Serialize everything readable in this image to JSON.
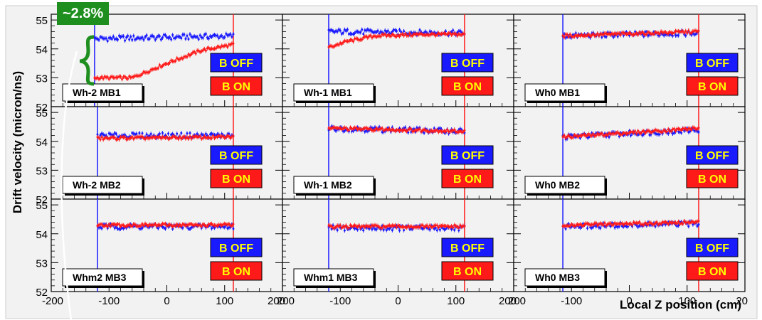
{
  "annotation": {
    "text": "~2.8%",
    "bg_color": "#1e8f1e"
  },
  "axes": {
    "ylabel": "Drift velocity  (micron/ns)",
    "xlabel": "Local Z position (cm)",
    "y_ticks": [
      "52",
      "53",
      "54",
      "55"
    ],
    "x_ticks_first": [
      "-200",
      "-100",
      "0",
      "100",
      "200"
    ],
    "x_ticks_mid": [
      "200",
      "-100",
      "0",
      "100",
      "200"
    ],
    "x_ticks_last": [
      "200",
      "-100",
      "0",
      "100",
      "20"
    ]
  },
  "legend": {
    "b_off": "B OFF",
    "b_on": "B ON",
    "b_off_color": "#1a1aff",
    "b_on_color": "#ff1a1a",
    "text_color": "#ffff00"
  },
  "colors": {
    "frame_bg": "#f2f2f2",
    "b_off_series": "#1a1aff",
    "b_on_series": "#ff1a1a"
  },
  "chart_data": [
    {
      "type": "line",
      "panel": "Wh-2 MB1",
      "xlim": [
        -200,
        200
      ],
      "ylim": [
        52,
        55.2
      ],
      "range": [
        -125,
        115
      ],
      "series": [
        {
          "name": "B OFF",
          "x": [
            -125,
            115
          ],
          "y": [
            54.35,
            54.45
          ]
        },
        {
          "name": "B ON",
          "x": [
            -125,
            -60,
            0,
            60,
            115
          ],
          "y": [
            53.0,
            53.0,
            53.5,
            53.95,
            54.15
          ]
        }
      ]
    },
    {
      "type": "line",
      "panel": "Wh-1 MB1",
      "xlim": [
        -200,
        200
      ],
      "ylim": [
        52,
        55.2
      ],
      "range": [
        -120,
        115
      ],
      "series": [
        {
          "name": "B OFF",
          "x": [
            -120,
            115
          ],
          "y": [
            54.6,
            54.55
          ]
        },
        {
          "name": "B ON",
          "x": [
            -120,
            -90,
            -40,
            40,
            115
          ],
          "y": [
            54.05,
            54.25,
            54.45,
            54.5,
            54.5
          ]
        }
      ]
    },
    {
      "type": "line",
      "panel": "Wh0 MB1",
      "xlim": [
        -200,
        200
      ],
      "ylim": [
        52,
        55.2
      ],
      "range": [
        -115,
        120
      ],
      "series": [
        {
          "name": "B OFF",
          "x": [
            -115,
            120
          ],
          "y": [
            54.45,
            54.55
          ]
        },
        {
          "name": "B ON",
          "x": [
            -115,
            120
          ],
          "y": [
            54.45,
            54.6
          ]
        }
      ]
    },
    {
      "type": "line",
      "panel": "Wh-2 MB2",
      "xlim": [
        -200,
        200
      ],
      "ylim": [
        52,
        55.2
      ],
      "range": [
        -120,
        115
      ],
      "series": [
        {
          "name": "B OFF",
          "x": [
            -120,
            115
          ],
          "y": [
            54.2,
            54.2
          ]
        },
        {
          "name": "B ON",
          "x": [
            -120,
            115
          ],
          "y": [
            54.1,
            54.15
          ]
        }
      ]
    },
    {
      "type": "line",
      "panel": "Wh-1 MB2",
      "xlim": [
        -200,
        200
      ],
      "ylim": [
        52,
        55.2
      ],
      "range": [
        -120,
        115
      ],
      "series": [
        {
          "name": "B OFF",
          "x": [
            -120,
            115
          ],
          "y": [
            54.45,
            54.35
          ]
        },
        {
          "name": "B ON",
          "x": [
            -120,
            115
          ],
          "y": [
            54.45,
            54.35
          ]
        }
      ]
    },
    {
      "type": "line",
      "panel": "Wh0 MB2",
      "xlim": [
        -200,
        200
      ],
      "ylim": [
        52,
        55.2
      ],
      "range": [
        -115,
        120
      ],
      "series": [
        {
          "name": "B OFF",
          "x": [
            -115,
            120
          ],
          "y": [
            54.15,
            54.4
          ]
        },
        {
          "name": "B ON",
          "x": [
            -115,
            120
          ],
          "y": [
            54.15,
            54.45
          ]
        }
      ]
    },
    {
      "type": "line",
      "panel": "Whm2 MB3",
      "xlim": [
        -200,
        200
      ],
      "ylim": [
        52,
        55.2
      ],
      "range": [
        -120,
        115
      ],
      "series": [
        {
          "name": "B OFF",
          "x": [
            -120,
            115
          ],
          "y": [
            54.25,
            54.25
          ]
        },
        {
          "name": "B ON",
          "x": [
            -120,
            115
          ],
          "y": [
            54.3,
            54.3
          ]
        }
      ]
    },
    {
      "type": "line",
      "panel": "Whm1 MB3",
      "xlim": [
        -200,
        200
      ],
      "ylim": [
        52,
        55.2
      ],
      "range": [
        -120,
        115
      ],
      "series": [
        {
          "name": "B OFF",
          "x": [
            -120,
            115
          ],
          "y": [
            54.2,
            54.2
          ]
        },
        {
          "name": "B ON",
          "x": [
            -120,
            115
          ],
          "y": [
            54.25,
            54.25
          ]
        }
      ]
    },
    {
      "type": "line",
      "panel": "Wh0 MB3",
      "xlim": [
        -200,
        200
      ],
      "ylim": [
        52,
        55.2
      ],
      "range": [
        -115,
        120
      ],
      "series": [
        {
          "name": "B OFF",
          "x": [
            -115,
            120
          ],
          "y": [
            54.25,
            54.35
          ]
        },
        {
          "name": "B ON",
          "x": [
            -115,
            120
          ],
          "y": [
            54.3,
            54.4
          ]
        }
      ]
    }
  ]
}
